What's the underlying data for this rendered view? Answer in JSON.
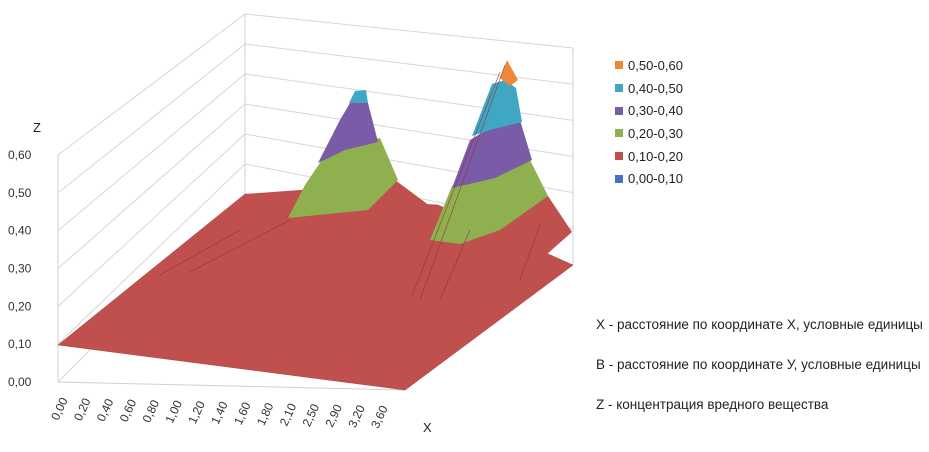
{
  "chart_data": {
    "type": "surface",
    "z_axis": {
      "label": "Z",
      "ticks": [
        "0,00",
        "0,10",
        "0,20",
        "0,30",
        "0,40",
        "0,50",
        "0,60"
      ],
      "range": [
        0,
        0.6
      ]
    },
    "x_axis": {
      "label": "X",
      "ticks": [
        "0,00",
        "0,20",
        "0,40",
        "0,60",
        "0,80",
        "1,00",
        "1,20",
        "1,40",
        "1,60",
        "1,80",
        "2,10",
        "2,50",
        "2,90",
        "3,20",
        "3,60"
      ]
    },
    "legend": [
      {
        "label": "0,50-0,60",
        "color": "#f0883a"
      },
      {
        "label": "0,40-0,50",
        "color": "#3fa6c4"
      },
      {
        "label": "0,30-0,40",
        "color": "#7a5ba8"
      },
      {
        "label": "0,20-0,30",
        "color": "#8fb04e"
      },
      {
        "label": "0,10-0,20",
        "color": "#c0504d"
      },
      {
        "label": "0,00-0,10",
        "color": "#4472c4"
      }
    ],
    "peaks": [
      {
        "description": "left peak",
        "z_max": 0.52
      },
      {
        "description": "right peak",
        "z_max": 0.56
      }
    ],
    "base_level": 0.1,
    "grid": true
  },
  "notes": [
    "X - расстояние по координате X, условные единицы",
    "В - расстояние по координате У, условные единицы",
    "Z - концентрация вредного вещества"
  ]
}
